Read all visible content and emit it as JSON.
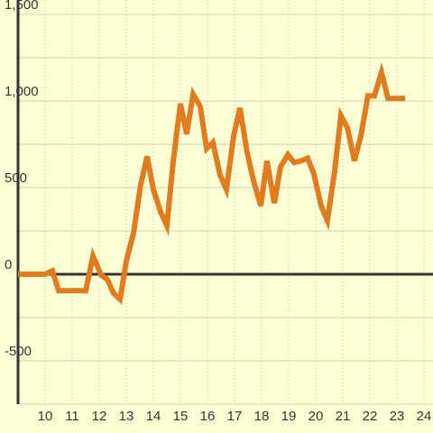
{
  "chart_data": {
    "type": "line",
    "x": [
      9,
      10,
      10.27,
      10.5,
      11.5,
      11.77,
      12.07,
      12.3,
      12.53,
      12.77,
      13,
      13.27,
      13.53,
      13.77,
      14,
      14.27,
      14.5,
      14.73,
      15,
      15.23,
      15.47,
      15.73,
      15.97,
      16.2,
      16.47,
      16.7,
      16.97,
      17.2,
      17.47,
      17.7,
      17.97,
      18.2,
      18.47,
      18.7,
      18.97,
      19.2,
      19.47,
      19.7,
      19.93,
      20.2,
      20.43,
      20.7,
      20.93,
      21.17,
      21.43,
      21.67,
      21.93,
      22.17,
      22.43,
      22.67,
      23.3
    ],
    "series": [
      {
        "color": "#e07b20",
        "values": [
          0,
          0,
          20,
          -95,
          -95,
          105,
          -5,
          -30,
          -110,
          -145,
          75,
          240,
          515,
          680,
          490,
          360,
          280,
          645,
          985,
          810,
          1040,
          970,
          725,
          760,
          570,
          490,
          800,
          960,
          700,
          540,
          395,
          655,
          410,
          620,
          690,
          645,
          655,
          670,
          580,
          395,
          310,
          595,
          915,
          845,
          655,
          800,
          1030,
          1030,
          1165,
          1015,
          1015
        ]
      }
    ],
    "xlim": [
      9,
      24.3
    ],
    "xticks": [
      10,
      11,
      12,
      13,
      14,
      15,
      16,
      17,
      18,
      19,
      20,
      21,
      22,
      23,
      24
    ],
    "ylim": [
      -750,
      1500
    ],
    "yticks": [
      {
        "value": 1500,
        "label": "1,500"
      },
      {
        "value": 1000,
        "label": "1,000"
      },
      500,
      0,
      -500
    ],
    "minor_yticks": [
      1250,
      750,
      250,
      -250,
      -750
    ],
    "grid": true,
    "zero_line": true
  }
}
